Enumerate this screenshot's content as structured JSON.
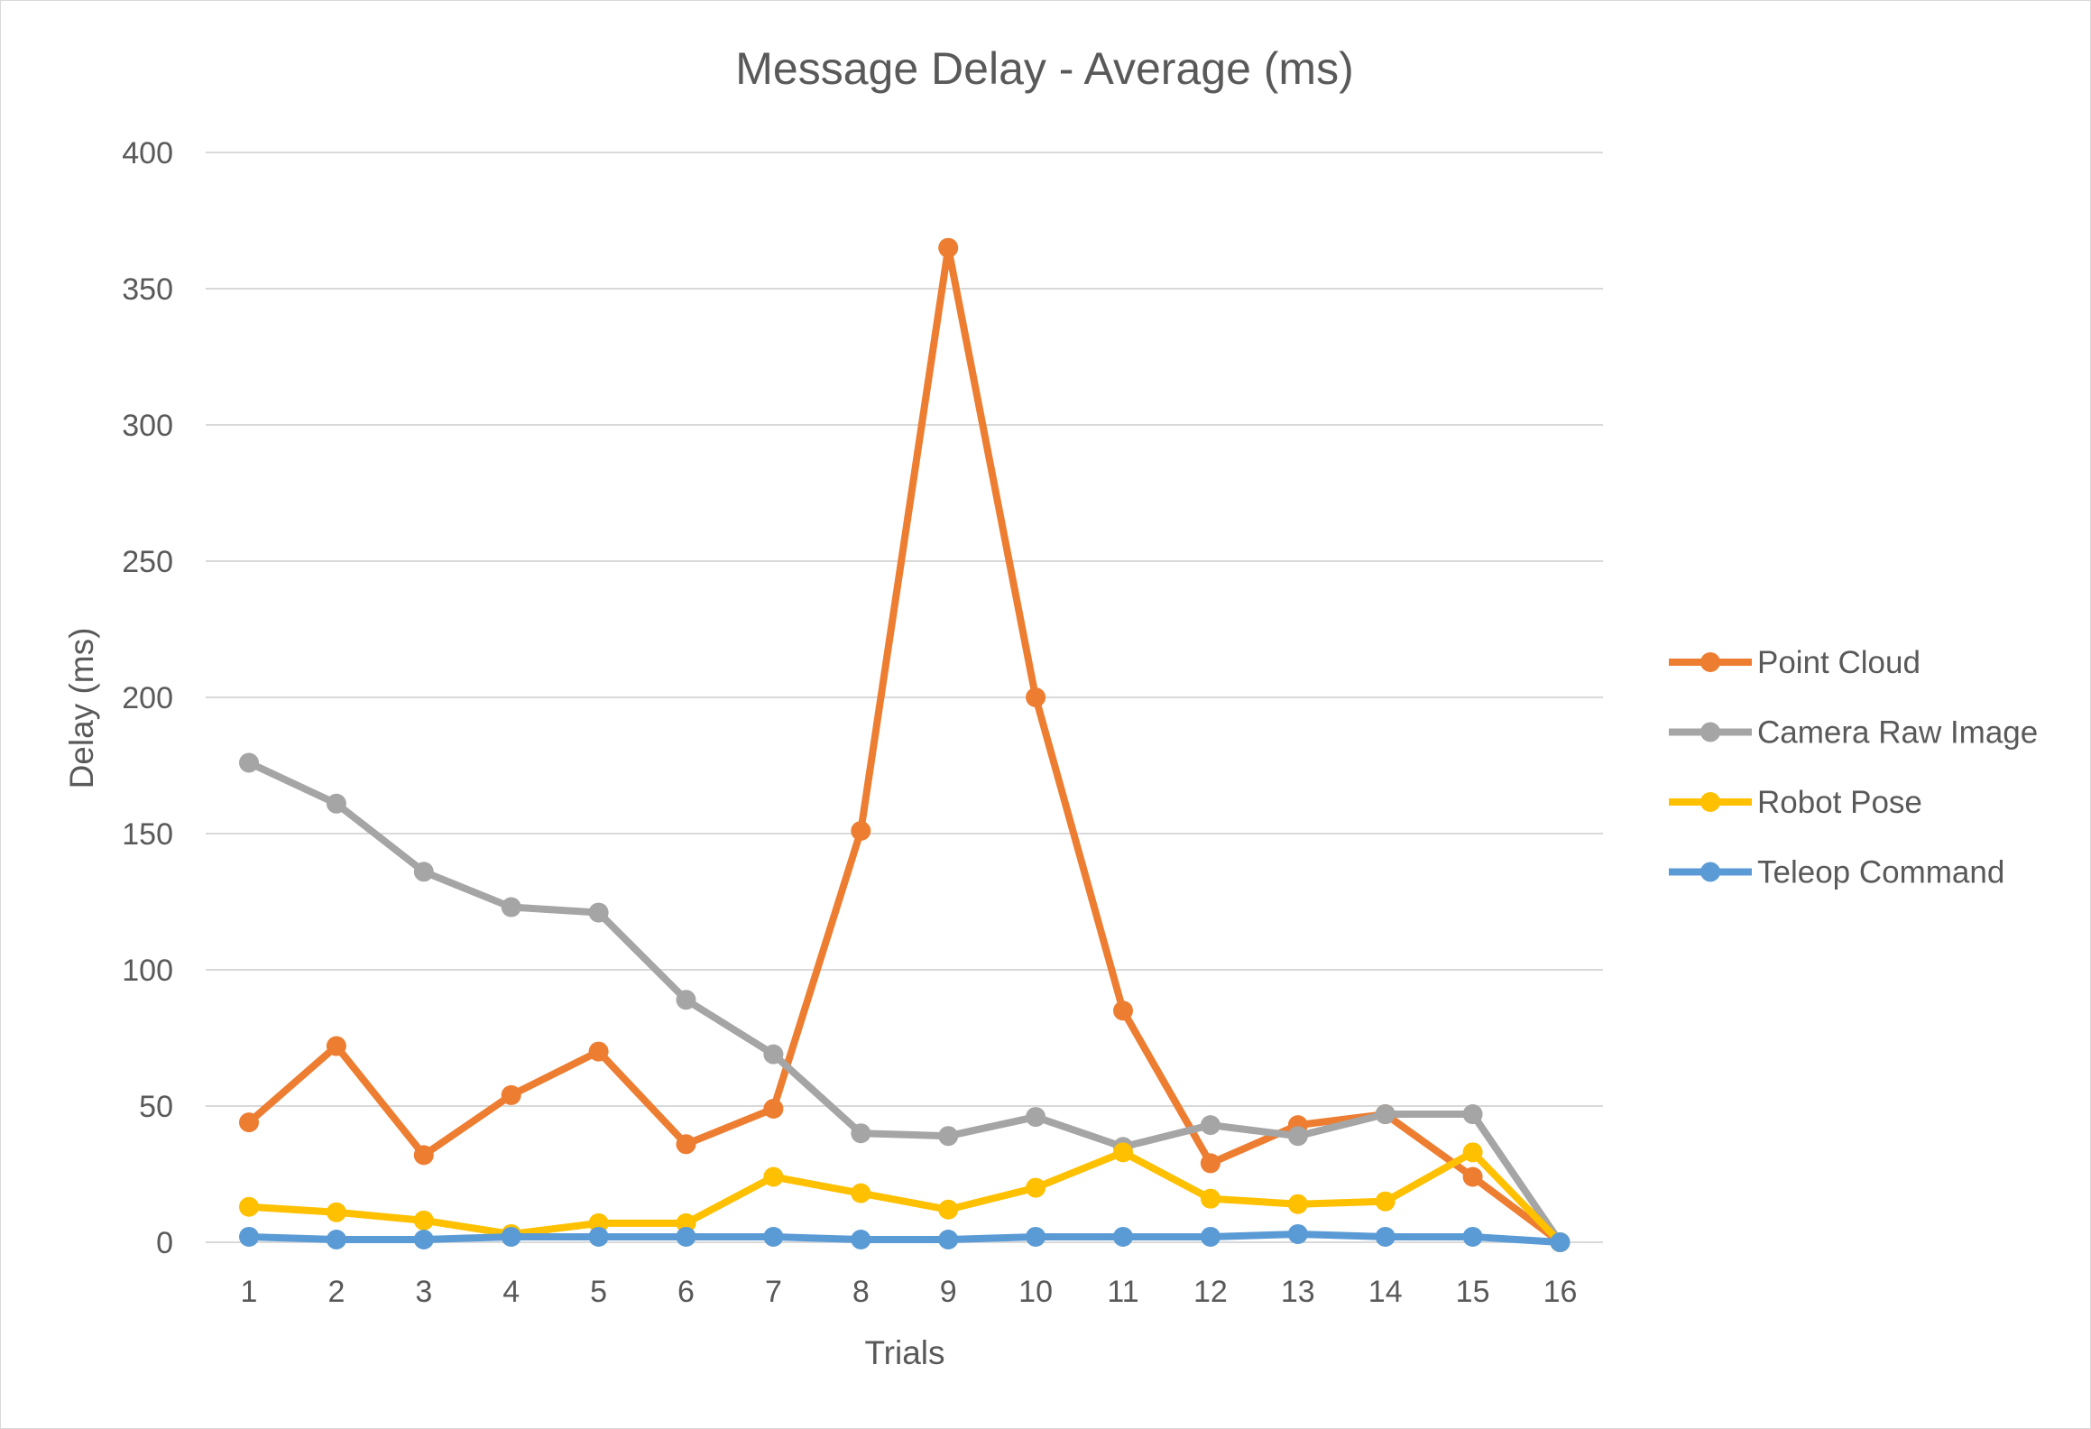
{
  "chart_data": {
    "type": "line",
    "title": "Message Delay - Average (ms)",
    "xlabel": "Trials",
    "ylabel": "Delay (ms)",
    "categories": [
      "1",
      "2",
      "3",
      "4",
      "5",
      "6",
      "7",
      "8",
      "9",
      "10",
      "11",
      "12",
      "13",
      "14",
      "15",
      "16"
    ],
    "ylim": [
      0,
      400
    ],
    "yticks": [
      "0",
      "50",
      "100",
      "150",
      "200",
      "250",
      "300",
      "350",
      "400"
    ],
    "grid": true,
    "legend_position": "right",
    "series": [
      {
        "name": "Point Cloud",
        "color": "#ED7D31",
        "values": [
          44,
          72,
          32,
          54,
          70,
          36,
          49,
          151,
          365,
          200,
          85,
          29,
          43,
          47,
          24,
          0
        ]
      },
      {
        "name": "Camera Raw Image",
        "color": "#A5A5A5",
        "values": [
          176,
          161,
          136,
          123,
          121,
          89,
          69,
          40,
          39,
          46,
          35,
          43,
          39,
          47,
          47,
          0
        ]
      },
      {
        "name": "Robot Pose",
        "color": "#FFC000",
        "values": [
          13,
          11,
          8,
          3,
          7,
          7,
          24,
          18,
          12,
          20,
          33,
          16,
          14,
          15,
          33,
          0
        ]
      },
      {
        "name": "Teleop Command",
        "color": "#5B9BD5",
        "values": [
          2,
          1,
          1,
          2,
          2,
          2,
          2,
          1,
          1,
          2,
          2,
          2,
          3,
          2,
          2,
          0
        ]
      }
    ]
  }
}
